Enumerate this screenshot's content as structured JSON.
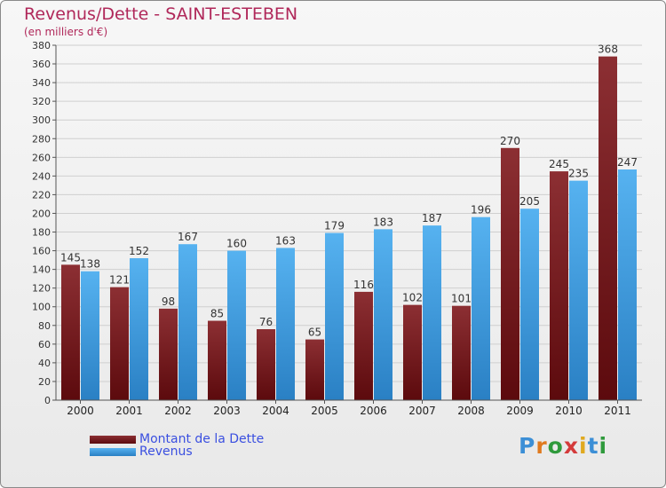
{
  "title": "Revenus/Dette - SAINT-ESTEBEN",
  "subtitle": "(en milliers d'€)",
  "colors": {
    "dette": "#7a1e22",
    "revenus": "#4aa8e8",
    "title": "#b0285a",
    "legend_text": "#3a4fe0"
  },
  "chart_data": {
    "type": "bar",
    "categories": [
      "2000",
      "2001",
      "2002",
      "2003",
      "2004",
      "2005",
      "2006",
      "2007",
      "2008",
      "2009",
      "2010",
      "2011"
    ],
    "series": [
      {
        "name": "Montant de la Dette",
        "values": [
          145,
          121,
          98,
          85,
          76,
          65,
          116,
          102,
          101,
          270,
          245,
          368
        ]
      },
      {
        "name": "Revenus",
        "values": [
          138,
          152,
          167,
          160,
          163,
          179,
          183,
          187,
          196,
          205,
          235,
          247
        ]
      }
    ],
    "ylim": [
      0,
      380
    ],
    "yticks": [
      0,
      20,
      40,
      60,
      80,
      100,
      120,
      140,
      160,
      180,
      200,
      220,
      240,
      260,
      280,
      300,
      320,
      340,
      360,
      380
    ],
    "grid": true,
    "legend": "bottom-left"
  },
  "legend": [
    {
      "label": "Montant de la Dette"
    },
    {
      "label": "Revenus"
    }
  ],
  "logo": {
    "text": "Proxiti"
  }
}
